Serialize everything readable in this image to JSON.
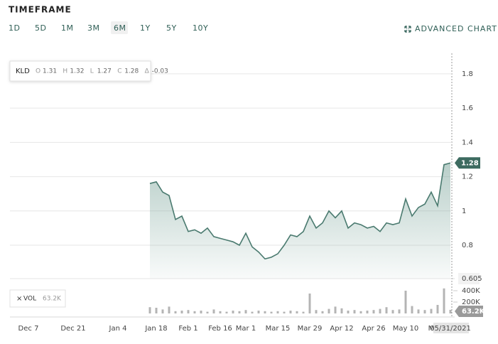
{
  "timeframe": {
    "title": "TIMEFRAME",
    "options": [
      "1D",
      "5D",
      "1M",
      "3M",
      "6M",
      "1Y",
      "5Y",
      "10Y"
    ],
    "selected": "6M"
  },
  "advanced_chart": "ADVANCED CHART",
  "chart_data": {
    "type": "line",
    "categories": [
      "Dec 7",
      null,
      null,
      null,
      null,
      null,
      null,
      "Dec 21",
      null,
      null,
      null,
      null,
      null,
      null,
      "Jan 4",
      null,
      null,
      null,
      null,
      null,
      "Jan 18",
      null,
      null,
      null,
      null,
      "Feb 1",
      null,
      null,
      null,
      null,
      "Feb 16",
      null,
      null,
      null,
      "Mar 1",
      null,
      null,
      null,
      null,
      "Mar 15",
      null,
      null,
      null,
      null,
      "Mar 29",
      null,
      null,
      null,
      null,
      "Apr 12",
      null,
      null,
      null,
      null,
      "Apr 26",
      null,
      null,
      null,
      null,
      "May 10",
      null,
      null,
      null,
      "M",
      null,
      null,
      "05/31/2021"
    ],
    "series": [
      {
        "name": "KLD",
        "color": "#4a7a6f",
        "values": [
          null,
          null,
          null,
          null,
          null,
          null,
          null,
          null,
          null,
          null,
          null,
          null,
          null,
          null,
          null,
          null,
          null,
          null,
          null,
          1.16,
          1.17,
          1.11,
          1.09,
          0.95,
          0.97,
          0.88,
          0.89,
          0.87,
          0.9,
          0.85,
          0.84,
          0.83,
          0.82,
          0.8,
          0.87,
          0.79,
          0.76,
          0.72,
          0.73,
          0.75,
          0.8,
          0.86,
          0.85,
          0.88,
          0.97,
          0.9,
          0.93,
          1.0,
          0.96,
          1.0,
          0.9,
          0.93,
          0.92,
          0.9,
          0.91,
          0.88,
          0.93,
          0.92,
          0.93,
          1.07,
          0.97,
          1.02,
          1.04,
          1.11,
          1.03,
          1.27,
          1.28
        ]
      },
      {
        "name": "VOL",
        "color": "#b4b4b4",
        "axis": "y2",
        "values": [
          null,
          null,
          null,
          null,
          null,
          null,
          null,
          null,
          null,
          null,
          null,
          null,
          null,
          null,
          null,
          null,
          null,
          null,
          null,
          110000,
          100000,
          70000,
          120000,
          40000,
          50000,
          60000,
          40000,
          50000,
          30000,
          70000,
          40000,
          30000,
          50000,
          40000,
          60000,
          30000,
          50000,
          40000,
          30000,
          40000,
          30000,
          50000,
          40000,
          30000,
          350000,
          60000,
          40000,
          80000,
          120000,
          90000,
          50000,
          60000,
          40000,
          50000,
          60000,
          80000,
          110000,
          60000,
          70000,
          400000,
          130000,
          70000,
          60000,
          80000,
          150000,
          440000,
          63200
        ],
        "value_labels": [
          null,
          null,
          null,
          null,
          null,
          null,
          null,
          null,
          null,
          null,
          null,
          null,
          null,
          null,
          null,
          null,
          null,
          null,
          null,
          null,
          null,
          null,
          null,
          null,
          null,
          null,
          null,
          null,
          null,
          null,
          null,
          null,
          null,
          null,
          null,
          null,
          null,
          null,
          null,
          null,
          null,
          null,
          null,
          null,
          null,
          null,
          null,
          null,
          null,
          null,
          null,
          null,
          null,
          null,
          null,
          null,
          null,
          null,
          null,
          null,
          null,
          null,
          null,
          null,
          null,
          null,
          "63.2K"
        ]
      }
    ],
    "ohlc": [
      {
        "label": "O",
        "value": 1.31
      },
      {
        "label": "H",
        "value": 1.32
      },
      {
        "label": "L",
        "value": 1.27
      },
      {
        "label": "C",
        "value": 1.28
      },
      {
        "label": "Δ",
        "value": -0.03
      }
    ],
    "ylim": [
      0.605,
      1.92
    ],
    "yticks": [
      0.605,
      0.8,
      1,
      1.2,
      1.4,
      1.6,
      1.8
    ],
    "y2lim": [
      0,
      500000
    ],
    "y2ticks": [
      {
        "value": 200000,
        "label": "200K"
      },
      {
        "value": 400000,
        "label": "400K"
      }
    ],
    "grid": true
  }
}
